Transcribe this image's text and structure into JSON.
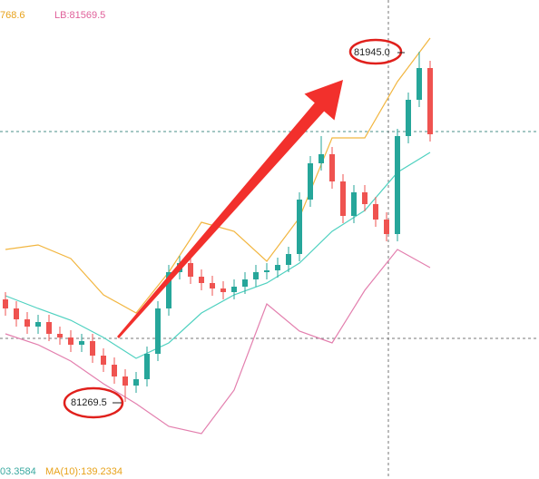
{
  "chart_data": {
    "type": "candlestick",
    "ylim": [
      81120.75,
      82044.75
    ],
    "up_color": "#26a69a",
    "down_color": "#ef5350",
    "candles": {
      "open": [
        81467.25,
        81449.75,
        81428.75,
        81414.75,
        81423.5,
        81400.75,
        81393.75,
        81379.75,
        81386.75,
        81358.75,
        81341.25,
        81318.5,
        81301.0,
        81313.25,
        81362.25,
        81449.75,
        81519.75,
        81537.25,
        81511.0,
        81498.75,
        81488.25,
        81481.25,
        81491.75,
        81505.75,
        81519.75,
        81523.25,
        81533.75,
        81554.75,
        81659.75,
        81729.75,
        81747.25,
        81694.75,
        81628.25,
        81673.75,
        81651.0,
        81621.25,
        81593.25,
        81782.25,
        81852.25,
        81913.5
      ],
      "high": [
        81481.25,
        81463.75,
        81442.75,
        81437.5,
        81437.5,
        81414.75,
        81407.75,
        81400.75,
        81400.75,
        81372.75,
        81355.25,
        81332.5,
        81327.25,
        81376.25,
        81463.75,
        81533.75,
        81551.25,
        81551.25,
        81525.0,
        81512.75,
        81502.25,
        81505.75,
        81519.75,
        81533.75,
        81537.25,
        81547.75,
        81568.75,
        81673.75,
        81743.75,
        81782.25,
        81761.25,
        81708.75,
        81687.75,
        81687.75,
        81665.0,
        81635.25,
        81796.25,
        81866.25,
        81945.0,
        81927.5
      ],
      "low": [
        81435.75,
        81414.75,
        81400.75,
        81400.75,
        81386.75,
        81379.75,
        81365.75,
        81365.75,
        81344.75,
        81327.25,
        81304.5,
        81269.5,
        81287.0,
        81299.25,
        81348.25,
        81435.75,
        81505.75,
        81497.0,
        81484.75,
        81474.25,
        81467.25,
        81467.25,
        81477.75,
        81491.75,
        81505.75,
        81509.25,
        81519.75,
        81540.75,
        81645.75,
        81715.75,
        81680.75,
        81614.25,
        81614.25,
        81637.0,
        81607.25,
        81579.25,
        81579.25,
        81768.25,
        81838.25,
        81771.75
      ],
      "close": [
        81449.75,
        81428.75,
        81414.75,
        81423.5,
        81400.75,
        81393.75,
        81379.75,
        81386.75,
        81358.75,
        81341.25,
        81318.5,
        81301.0,
        81313.25,
        81362.25,
        81449.75,
        81519.75,
        81537.25,
        81511.0,
        81498.75,
        81488.25,
        81481.25,
        81491.75,
        81505.75,
        81519.75,
        81523.25,
        81533.75,
        81554.75,
        81659.75,
        81729.75,
        81747.25,
        81694.75,
        81628.25,
        81673.75,
        81651.0,
        81621.25,
        81593.25,
        81782.25,
        81852.25,
        81913.5,
        81785.75
      ]
    },
    "bands": [
      {
        "color": "#f2b640",
        "x": [
          0,
          3,
          6,
          9,
          12,
          15,
          18,
          21,
          24,
          27,
          30,
          33,
          36,
          39
        ],
        "values": [
          81563.5,
          81572.25,
          81546.0,
          81476.0,
          81441.0,
          81519.75,
          81616.0,
          81598.5,
          81540.75,
          81624.75,
          81778.75,
          81778.75,
          81887.25,
          81971.25
        ]
      },
      {
        "color": "#4fd1c0",
        "x": [
          0,
          3,
          6,
          9,
          12,
          15,
          18,
          21,
          24,
          27,
          30,
          33,
          36,
          39
        ],
        "values": [
          81474.25,
          81449.75,
          81427.0,
          81393.75,
          81353.5,
          81383.25,
          81441.0,
          81476.0,
          81498.75,
          81537.25,
          81598.5,
          81638.75,
          81712.25,
          81750.75
        ]
      },
      {
        "color": "#e37fae",
        "x": [
          0,
          3,
          6,
          9,
          12,
          15,
          18,
          21,
          24,
          27,
          30,
          33,
          36,
          39
        ],
        "values": [
          81400.75,
          81379.75,
          81348.25,
          81304.5,
          81266.0,
          81222.25,
          81208.25,
          81292.25,
          81458.5,
          81406.0,
          81383.25,
          81484.75,
          81563.5,
          81528.5
        ]
      }
    ],
    "header": [
      "768.6",
      "LB:81569.5"
    ],
    "footer": [
      "03.3584",
      "MA(10):139.2334"
    ],
    "annotations": [
      {
        "text": "81945.0"
      },
      {
        "text": "81269.5"
      }
    ]
  }
}
